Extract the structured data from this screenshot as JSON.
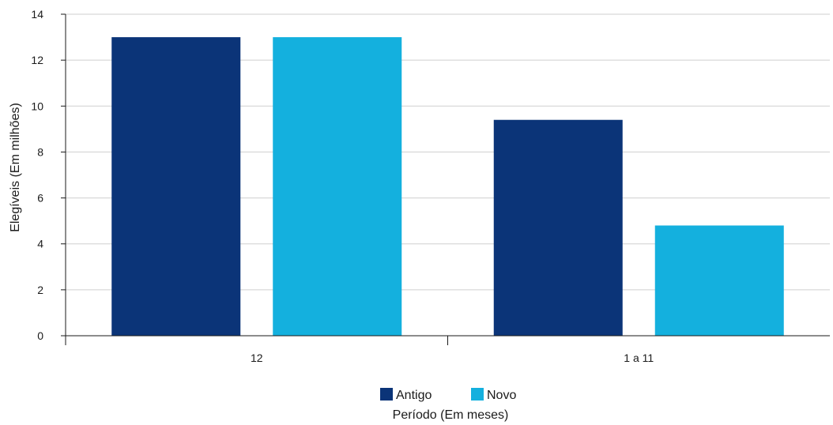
{
  "chart_data": {
    "type": "bar",
    "categories": [
      "12",
      "1 a 11"
    ],
    "series": [
      {
        "name": "Antigo",
        "values": [
          13.0,
          9.4
        ],
        "color": "#0b3478"
      },
      {
        "name": "Novo",
        "values": [
          13.0,
          4.8
        ],
        "color": "#14b0de"
      }
    ],
    "xlabel": "Período (Em meses)",
    "ylabel": "Elegíveis (Em milhões)",
    "ylim": [
      0,
      14
    ],
    "yticks": [
      0,
      2,
      4,
      6,
      8,
      10,
      12,
      14
    ],
    "grid": true,
    "legend_position": "bottom"
  }
}
